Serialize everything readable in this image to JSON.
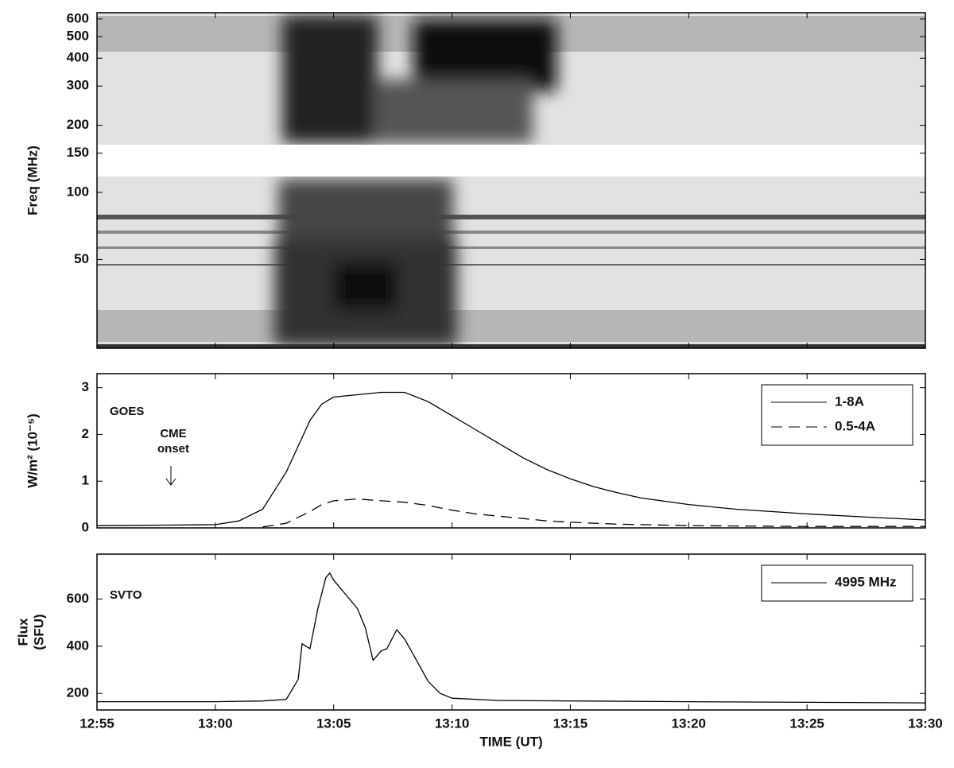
{
  "chart_data": [
    {
      "type": "spectrogram",
      "ylabel": "Freq (MHz)",
      "log_y": true,
      "ylim": [
        20,
        640
      ],
      "yticks": [
        50,
        100,
        150,
        200,
        300,
        400,
        500,
        600
      ],
      "xlim": [
        "12:55",
        "13:30"
      ],
      "xticks": [
        "12:55",
        "13:00",
        "13:05",
        "13:10",
        "13:15",
        "13:20",
        "13:25",
        "13:30"
      ]
    },
    {
      "type": "line",
      "ylabel": "W/m² (10⁻⁵)",
      "label": "GOES",
      "note": [
        "CME",
        "onset"
      ],
      "legend": "upper right",
      "ylim": [
        0,
        3.3
      ],
      "yticks": [
        0,
        1,
        2,
        3
      ],
      "xlim": [
        "12:55",
        "13:30"
      ],
      "xticks": [
        "12:55",
        "13:00",
        "13:05",
        "13:10",
        "13:15",
        "13:20",
        "13:25",
        "13:30"
      ],
      "x": [
        "12:55",
        "12:58",
        "13:00",
        "13:01",
        "13:02",
        "13:03",
        "13:04",
        "13:04:30",
        "13:05",
        "13:06",
        "13:07",
        "13:08",
        "13:09",
        "13:10",
        "13:11",
        "13:12",
        "13:13",
        "13:14",
        "13:15",
        "13:16",
        "13:17",
        "13:18",
        "13:20",
        "13:22",
        "13:25",
        "13:28",
        "13:30"
      ],
      "series": [
        {
          "name": "1-8A",
          "color": "#000000",
          "dash": false,
          "values": [
            0.05,
            0.06,
            0.07,
            0.15,
            0.4,
            1.2,
            2.3,
            2.65,
            2.8,
            2.85,
            2.9,
            2.9,
            2.7,
            2.4,
            2.1,
            1.8,
            1.5,
            1.25,
            1.05,
            0.88,
            0.75,
            0.64,
            0.5,
            0.4,
            0.3,
            0.22,
            0.17
          ]
        },
        {
          "name": "0.5-4A",
          "color": "#000000",
          "dash": true,
          "values": [
            null,
            null,
            null,
            null,
            0.02,
            0.1,
            0.35,
            0.5,
            0.58,
            0.62,
            0.58,
            0.55,
            0.48,
            0.38,
            0.3,
            0.25,
            0.2,
            0.15,
            0.12,
            0.1,
            0.08,
            0.07,
            0.05,
            0.04,
            0.03,
            0.03,
            0.03
          ]
        }
      ]
    },
    {
      "type": "line",
      "ylabel": [
        "Flux",
        "(SFU)"
      ],
      "label": "SVTO",
      "xlabel": "TIME (UT)",
      "legend": "upper right",
      "ylim": [
        130,
        790
      ],
      "yticks": [
        200,
        400,
        600
      ],
      "xlim": [
        "12:55",
        "13:30"
      ],
      "xticks": [
        "12:55",
        "13:00",
        "13:05",
        "13:10",
        "13:15",
        "13:20",
        "13:25",
        "13:30"
      ],
      "x": [
        "12:55",
        "13:00",
        "13:02",
        "13:03",
        "13:03:30",
        "13:03:40",
        "13:04",
        "13:04:20",
        "13:04:40",
        "13:04:50",
        "13:05",
        "13:05:30",
        "13:06",
        "13:06:20",
        "13:06:40",
        "13:07",
        "13:07:15",
        "13:07:40",
        "13:08",
        "13:08:30",
        "13:09",
        "13:09:30",
        "13:10",
        "13:12",
        "13:20",
        "13:30"
      ],
      "series": [
        {
          "name": "4995 MHz",
          "color": "#000000",
          "dash": false,
          "values": [
            165,
            165,
            168,
            175,
            260,
            410,
            390,
            560,
            690,
            710,
            680,
            620,
            560,
            480,
            340,
            380,
            390,
            470,
            430,
            340,
            250,
            200,
            180,
            170,
            165,
            160
          ]
        }
      ]
    }
  ]
}
